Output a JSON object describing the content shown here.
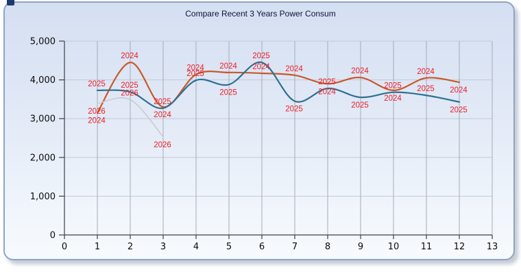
{
  "panel": {
    "title": "Compare Recent 3 Years Power Consum",
    "corner_square_color": "#1c3a70"
  },
  "chart_data": {
    "type": "line",
    "title": "Compare Recent 3 Years Power Consum",
    "xlabel": "",
    "ylabel": "",
    "xlim": [
      0,
      13
    ],
    "ylim": [
      0,
      5000
    ],
    "x_ticks": [
      0,
      1,
      2,
      3,
      4,
      5,
      6,
      7,
      8,
      9,
      10,
      11,
      12,
      13
    ],
    "y_ticks": [
      0,
      1000,
      2000,
      3000,
      4000,
      5000
    ],
    "y_tick_labels": [
      "0",
      "1,000",
      "2,000",
      "3,000",
      "4,000",
      "5,000"
    ],
    "grid": true,
    "legend_position": "none",
    "months": [
      1,
      2,
      3,
      4,
      5,
      6,
      7,
      8,
      9,
      10,
      11,
      12
    ],
    "point_label_color": "#ee1c25",
    "series": [
      {
        "name": "2024",
        "color": "#cb5727",
        "width": 2.2,
        "values": [
          3150,
          4450,
          3300,
          4140,
          4190,
          4170,
          4120,
          3900,
          4060,
          3730,
          4050,
          3940
        ],
        "label_positions": [
          "below",
          "above",
          "below",
          "above",
          "above",
          "above",
          "above",
          "below",
          "above",
          "below",
          "above",
          "below"
        ]
      },
      {
        "name": "2025",
        "color": "#2e7092",
        "width": 2.2,
        "values": [
          3730,
          3690,
          3270,
          3990,
          3880,
          4450,
          3450,
          3780,
          3550,
          3680,
          3600,
          3430
        ],
        "label_positions": [
          "above",
          "above",
          "above",
          "above",
          "below",
          "above",
          "below",
          "above",
          "below",
          "above",
          "above",
          "below"
        ]
      },
      {
        "name": "2026",
        "color": "#c7cbd1",
        "width": 1.6,
        "values": [
          3390,
          3490,
          2530
        ],
        "label_positions": [
          "below",
          "above",
          "below"
        ]
      }
    ]
  }
}
